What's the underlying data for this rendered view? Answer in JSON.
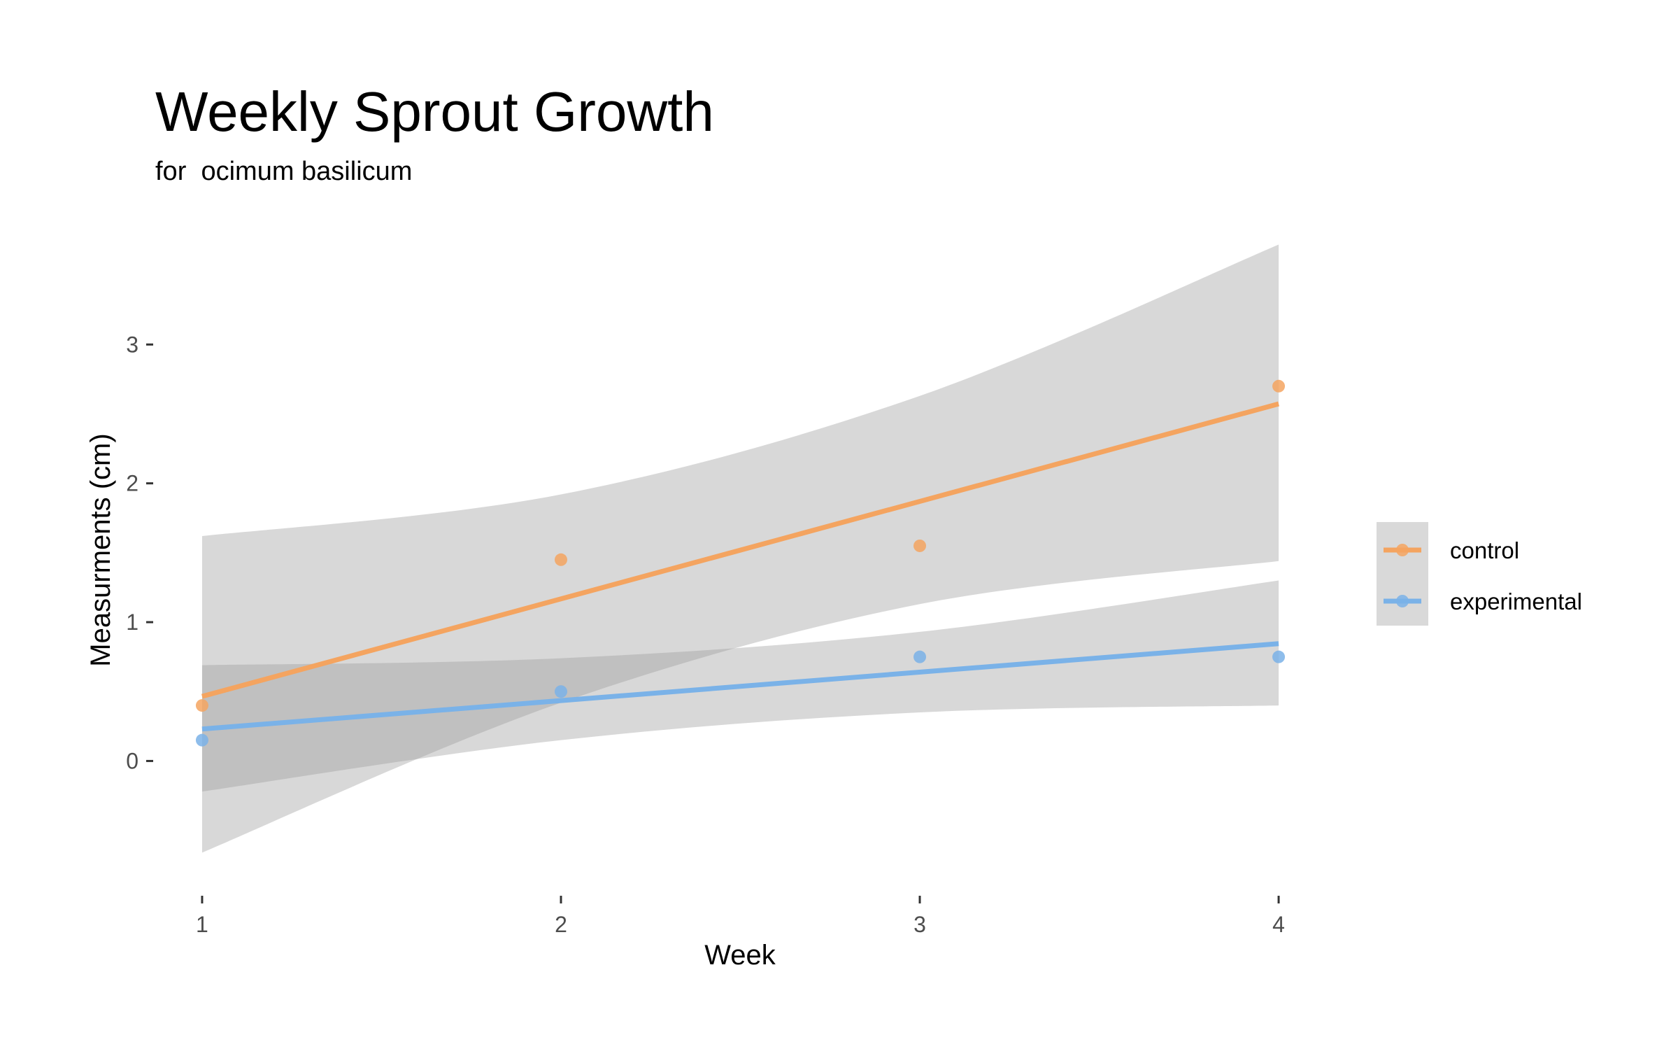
{
  "chart_data": {
    "type": "line",
    "title": "Weekly Sprout Growth",
    "subtitle": "for  ocimum basilicum",
    "xlabel": "Week",
    "ylabel": "Measurments (cm)",
    "xlim": [
      0.85,
      4.15
    ],
    "ylim": [
      -0.88,
      4.05
    ],
    "x_ticks": [
      1,
      2,
      3,
      4
    ],
    "y_ticks": [
      0,
      1,
      2,
      3
    ],
    "grid": false,
    "legend_position": "right",
    "series": [
      {
        "name": "control",
        "color": "#f4a460",
        "x": [
          1,
          2,
          3,
          4
        ],
        "y": [
          0.4,
          1.45,
          1.55,
          2.7
        ],
        "fit": {
          "intercept": -0.2375,
          "slope": 0.7025
        },
        "band": [
          {
            "x": 1,
            "lower": -0.66,
            "upper": 1.62
          },
          {
            "x": 2,
            "lower": 0.42,
            "upper": 1.92
          },
          {
            "x": 3,
            "lower": 1.13,
            "upper": 2.63
          },
          {
            "x": 4,
            "lower": 1.44,
            "upper": 3.72
          }
        ]
      },
      {
        "name": "experimental",
        "color": "#7ab2e8",
        "x": [
          1,
          2,
          3,
          4
        ],
        "y": [
          0.15,
          0.5,
          0.75,
          0.75
        ],
        "fit": {
          "intercept": 0.025,
          "slope": 0.205
        },
        "band": [
          {
            "x": 1,
            "lower": -0.22,
            "upper": 0.69
          },
          {
            "x": 2,
            "lower": 0.15,
            "upper": 0.74
          },
          {
            "x": 3,
            "lower": 0.35,
            "upper": 0.93
          },
          {
            "x": 4,
            "lower": 0.4,
            "upper": 1.3
          }
        ]
      }
    ]
  }
}
